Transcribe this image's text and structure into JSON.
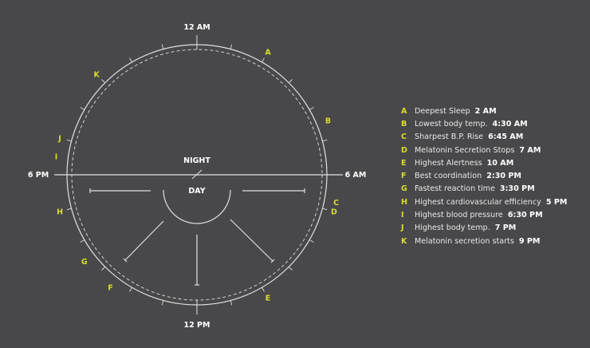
{
  "clock": {
    "top_label": "12 AM",
    "right_label": "6 AM",
    "bottom_label": "12 PM",
    "left_label": "6 PM",
    "night_label": "NIGHT",
    "day_label": "DAY"
  },
  "colors": {
    "background": "#48484a",
    "line": "#e0e0e0",
    "letter": "#d8dc2a"
  },
  "events": [
    {
      "letter": "A",
      "label": "Deepest Sleep",
      "time": "2 AM",
      "hour": 2
    },
    {
      "letter": "B",
      "label": "Lowest body temp.",
      "time": "4:30 AM",
      "hour": 4.5
    },
    {
      "letter": "C",
      "label": "Sharpest B.P. Rise",
      "time": "6:45 AM",
      "hour": 6.75
    },
    {
      "letter": "D",
      "label": "Melatonin Secretion Stops",
      "time": "7 AM",
      "hour": 7
    },
    {
      "letter": "E",
      "label": "Highest Alertness",
      "time": "10 AM",
      "hour": 10
    },
    {
      "letter": "F",
      "label": "Best coordination",
      "time": "2:30 PM",
      "hour": 14.5
    },
    {
      "letter": "G",
      "label": "Fastest reaction time",
      "time": "3:30 PM",
      "hour": 15.5
    },
    {
      "letter": "H",
      "label": "Highest cardiovascular efficiency",
      "time": "5 PM",
      "hour": 17
    },
    {
      "letter": "I",
      "label": "Highest blood pressure",
      "time": "6:30 PM",
      "hour": 18.5
    },
    {
      "letter": "J",
      "label": "Highest body temp.",
      "time": "7 PM",
      "hour": 19
    },
    {
      "letter": "K",
      "label": "Melatonin secretion starts",
      "time": "9 PM",
      "hour": 21
    }
  ]
}
